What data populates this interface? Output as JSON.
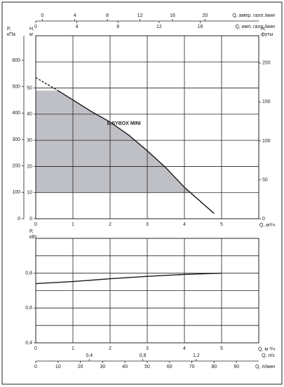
{
  "chart_data": [
    {
      "type": "line",
      "annotation": "E.SYBOX MINI",
      "xlim": [
        0,
        6
      ],
      "xticks": [
        0,
        1,
        2,
        3,
        4,
        5
      ],
      "xlabel": "Q, м³/ч",
      "ylim": [
        0,
        70
      ],
      "yticks": [
        0,
        10,
        20,
        30,
        40,
        50
      ],
      "yminor": [
        60
      ],
      "ylabel": [
        "H,",
        "м"
      ],
      "grid": true,
      "x_top": [
        {
          "label": "Q, амер. галл./мин",
          "xlim": [
            -0.8,
            26.6
          ],
          "xticks": [
            0,
            4,
            8,
            12,
            16,
            20
          ]
        },
        {
          "label": "Q, имп. галл./мин",
          "xlim": [
            0,
            21.7
          ],
          "xticks": [
            0,
            4,
            8,
            12,
            16
          ]
        }
      ],
      "y_left2": {
        "label": [
          "P,",
          "кПа"
        ],
        "ylim": [
          0,
          693
        ],
        "yticks": [
          0,
          100,
          200,
          300,
          400,
          500,
          600
        ]
      },
      "y_right": {
        "label": [
          "H,",
          "футы"
        ],
        "ylim": [
          0,
          235
        ],
        "yticks": [
          0,
          50,
          100,
          150,
          200
        ]
      },
      "shaded": {
        "color": "#bfbfc6",
        "x": [
          0,
          0,
          0.6,
          1.5,
          2,
          2.5,
          3,
          3.5,
          4,
          4.15
        ],
        "values": [
          10,
          49,
          49,
          41,
          37,
          32,
          26,
          19.5,
          12,
          10
        ]
      },
      "series": [
        {
          "color": "#1a1a1a",
          "dashed": true,
          "x": [
            0,
            0.6
          ],
          "values": [
            54,
            49
          ]
        },
        {
          "color": "#1a1a1a",
          "dashed": false,
          "x": [
            0.6,
            1.5,
            2,
            2.5,
            3,
            3.5,
            4,
            4.2,
            4.8
          ],
          "values": [
            49,
            41,
            37,
            32,
            26,
            19.5,
            12,
            9.5,
            2
          ]
        }
      ]
    },
    {
      "type": "line",
      "xlim": [
        0,
        6
      ],
      "xticks": [
        0,
        1,
        2,
        3,
        4,
        5
      ],
      "xlabel": "Q, м ³/ч",
      "ylim": [
        0.4,
        1.0
      ],
      "yticks": [
        {
          "value": 0.4,
          "label": "0,4"
        },
        {
          "value": 0.6,
          "label": "0,6"
        },
        {
          "value": 0.8,
          "label": "0,8"
        }
      ],
      "yminor": [
        0.5,
        0.7,
        0.9
      ],
      "ylabel": [
        "P,",
        "кВт"
      ],
      "grid": true,
      "x_bottom": [
        {
          "label": "Q, л/с",
          "xlim": [
            0,
            1.6667
          ],
          "xticks": [
            {
              "value": 0.4,
              "label": "0,4"
            },
            {
              "value": 0.8,
              "label": "0,8"
            },
            {
              "value": 1.2,
              "label": "1,2"
            }
          ]
        },
        {
          "label": "Q, л/мин",
          "xlim": [
            0,
            100
          ],
          "xticks": [
            0,
            10,
            20,
            30,
            40,
            50,
            60,
            70,
            80,
            90
          ]
        }
      ],
      "series": [
        {
          "color": "#1a1a1a",
          "dashed": false,
          "x": [
            0,
            1,
            2,
            3,
            4,
            5
          ],
          "values": [
            0.74,
            0.752,
            0.768,
            0.782,
            0.793,
            0.8
          ]
        }
      ]
    }
  ]
}
